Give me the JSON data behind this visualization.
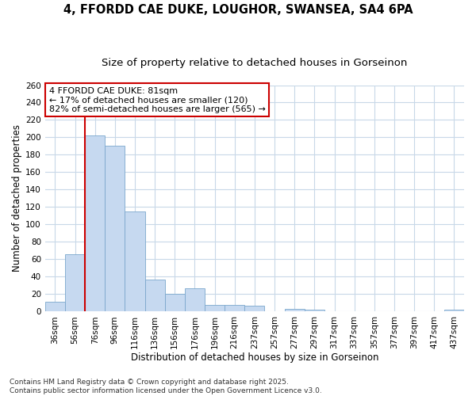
{
  "title_line1": "4, FFORDD CAE DUKE, LOUGHOR, SWANSEA, SA4 6PA",
  "title_line2": "Size of property relative to detached houses in Gorseinon",
  "xlabel": "Distribution of detached houses by size in Gorseinon",
  "ylabel": "Number of detached properties",
  "categories": [
    "36sqm",
    "56sqm",
    "76sqm",
    "96sqm",
    "116sqm",
    "136sqm",
    "156sqm",
    "176sqm",
    "196sqm",
    "216sqm",
    "237sqm",
    "257sqm",
    "277sqm",
    "297sqm",
    "317sqm",
    "337sqm",
    "357sqm",
    "377sqm",
    "397sqm",
    "417sqm",
    "437sqm"
  ],
  "values": [
    11,
    66,
    202,
    190,
    115,
    37,
    20,
    27,
    8,
    8,
    7,
    0,
    3,
    2,
    0,
    0,
    0,
    0,
    0,
    0,
    2
  ],
  "bar_color": "#c6d9f0",
  "bar_edge_color": "#7ba7cc",
  "vline_color": "#cc0000",
  "annotation_text": "4 FFORDD CAE DUKE: 81sqm\n← 17% of detached houses are smaller (120)\n82% of semi-detached houses are larger (565) →",
  "annotation_box_facecolor": "#ffffff",
  "annotation_box_edgecolor": "#cc0000",
  "ylim": [
    0,
    260
  ],
  "yticks": [
    0,
    20,
    40,
    60,
    80,
    100,
    120,
    140,
    160,
    180,
    200,
    220,
    240,
    260
  ],
  "footer": "Contains HM Land Registry data © Crown copyright and database right 2025.\nContains public sector information licensed under the Open Government Licence v3.0.",
  "bg_color": "#ffffff",
  "plot_bg_color": "#ffffff",
  "grid_color": "#c8d8e8",
  "title_fontsize": 10.5,
  "subtitle_fontsize": 9.5,
  "axis_label_fontsize": 8.5,
  "tick_fontsize": 7.5,
  "annotation_fontsize": 8,
  "footer_fontsize": 6.5
}
